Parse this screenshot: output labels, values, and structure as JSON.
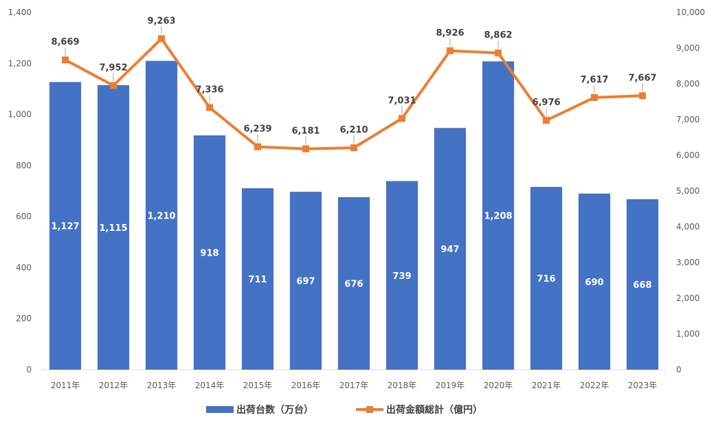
{
  "chart_data": {
    "type": "bar",
    "categories": [
      "2011年",
      "2012年",
      "2013年",
      "2014年",
      "2015年",
      "2016年",
      "2017年",
      "2018年",
      "2019年",
      "2020年",
      "2021年",
      "2022年",
      "2023年"
    ],
    "series": [
      {
        "name": "出荷台数（万台）",
        "type": "bar",
        "axis": "left",
        "color": "#4472C4",
        "values": [
          1127,
          1115,
          1210,
          918,
          711,
          697,
          676,
          739,
          947,
          1208,
          716,
          690,
          668
        ],
        "labels": [
          "1,127",
          "1,115",
          "1,210",
          "918",
          "711",
          "697",
          "676",
          "739",
          "947",
          "1,208",
          "716",
          "690",
          "668"
        ]
      },
      {
        "name": "出荷金額総計（億円）",
        "type": "line",
        "axis": "right",
        "color": "#ED7D31",
        "values": [
          8669,
          7952,
          9263,
          7336,
          6239,
          6181,
          6210,
          7031,
          8926,
          8862,
          6976,
          7617,
          7667
        ],
        "labels": [
          "8,669",
          "7,952",
          "9,263",
          "7,336",
          "6,239",
          "6,181",
          "6,210",
          "7,031",
          "8,926",
          "8,862",
          "6,976",
          "7,617",
          "7,667"
        ]
      }
    ],
    "y_left": {
      "range": [
        0,
        1400
      ],
      "ticks": [
        "0",
        "200",
        "400",
        "600",
        "800",
        "1,000",
        "1,200",
        "1,400"
      ]
    },
    "y_right": {
      "range": [
        0,
        10000
      ],
      "ticks": [
        "0",
        "1,000",
        "2,000",
        "3,000",
        "4,000",
        "5,000",
        "6,000",
        "7,000",
        "8,000",
        "9,000",
        "10,000"
      ]
    },
    "title": "",
    "xlabel": "",
    "ylabel": "",
    "grid": false,
    "legend": "bottom-center"
  }
}
